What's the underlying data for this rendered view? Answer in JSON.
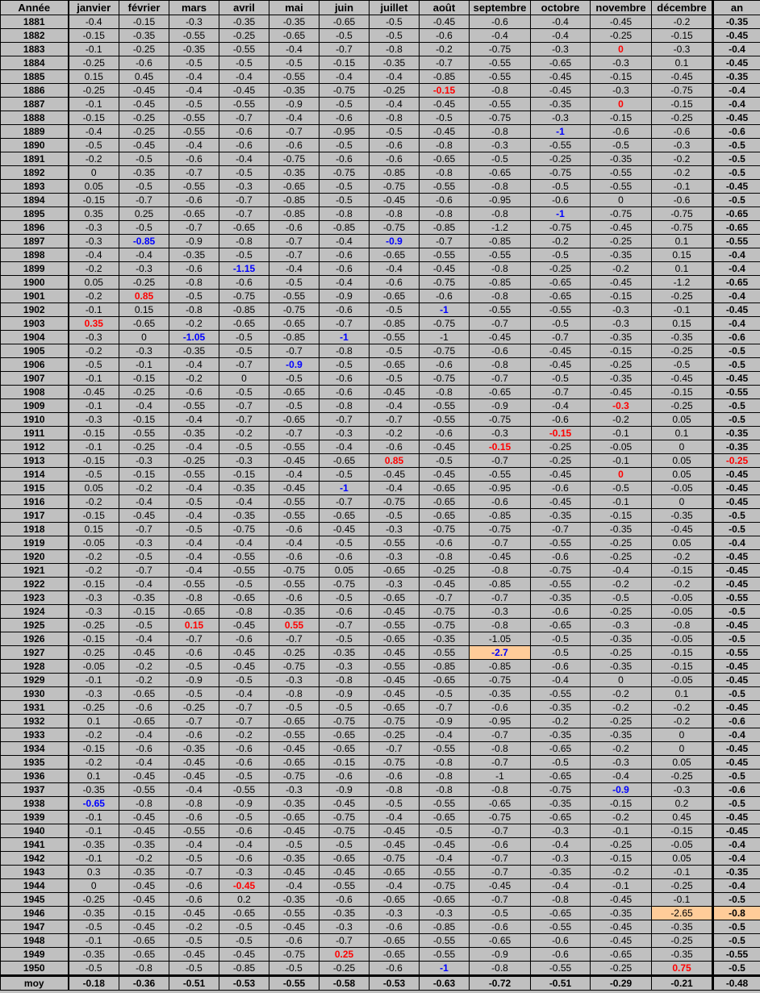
{
  "headers": [
    "Année",
    "janvier",
    "février",
    "mars",
    "avril",
    "mai",
    "juin",
    "juillet",
    "août",
    "septembre",
    "octobre",
    "novembre",
    "décembre",
    "an"
  ],
  "rows": [
    [
      "1881",
      "-0.4",
      "-0.15",
      "-0.3",
      "-0.35",
      "-0.35",
      "-0.65",
      "-0.5",
      "-0.45",
      "-0.6",
      "-0.4",
      "-0.45",
      "-0.2",
      "-0.35"
    ],
    [
      "1882",
      "-0.15",
      "-0.35",
      "-0.55",
      "-0.25",
      "-0.65",
      "-0.5",
      "-0.5",
      "-0.6",
      "-0.4",
      "-0.4",
      "-0.25",
      "-0.15",
      "-0.45"
    ],
    [
      "1883",
      "-0.1",
      "-0.25",
      "-0.35",
      "-0.55",
      "-0.4",
      "-0.7",
      "-0.8",
      "-0.2",
      "-0.75",
      "-0.3",
      "0",
      "-0.3",
      "-0.4"
    ],
    [
      "1884",
      "-0.25",
      "-0.6",
      "-0.5",
      "-0.5",
      "-0.5",
      "-0.15",
      "-0.35",
      "-0.7",
      "-0.55",
      "-0.65",
      "-0.3",
      "0.1",
      "-0.45"
    ],
    [
      "1885",
      "0.15",
      "0.45",
      "-0.4",
      "-0.4",
      "-0.55",
      "-0.4",
      "-0.4",
      "-0.85",
      "-0.55",
      "-0.45",
      "-0.15",
      "-0.45",
      "-0.35"
    ],
    [
      "1886",
      "-0.25",
      "-0.45",
      "-0.4",
      "-0.45",
      "-0.35",
      "-0.75",
      "-0.25",
      "-0.15",
      "-0.8",
      "-0.45",
      "-0.3",
      "-0.75",
      "-0.4"
    ],
    [
      "1887",
      "-0.1",
      "-0.45",
      "-0.5",
      "-0.55",
      "-0.9",
      "-0.5",
      "-0.4",
      "-0.45",
      "-0.55",
      "-0.35",
      "0",
      "-0.15",
      "-0.4"
    ],
    [
      "1888",
      "-0.15",
      "-0.25",
      "-0.55",
      "-0.7",
      "-0.4",
      "-0.6",
      "-0.8",
      "-0.5",
      "-0.75",
      "-0.3",
      "-0.15",
      "-0.25",
      "-0.45"
    ],
    [
      "1889",
      "-0.4",
      "-0.25",
      "-0.55",
      "-0.6",
      "-0.7",
      "-0.95",
      "-0.5",
      "-0.45",
      "-0.8",
      "-1",
      "-0.6",
      "-0.6",
      "-0.6"
    ],
    [
      "1890",
      "-0.5",
      "-0.45",
      "-0.4",
      "-0.6",
      "-0.6",
      "-0.5",
      "-0.6",
      "-0.8",
      "-0.3",
      "-0.55",
      "-0.5",
      "-0.3",
      "-0.5"
    ],
    [
      "1891",
      "-0.2",
      "-0.5",
      "-0.6",
      "-0.4",
      "-0.75",
      "-0.6",
      "-0.6",
      "-0.65",
      "-0.5",
      "-0.25",
      "-0.35",
      "-0.2",
      "-0.5"
    ],
    [
      "1892",
      "0",
      "-0.35",
      "-0.7",
      "-0.5",
      "-0.35",
      "-0.75",
      "-0.85",
      "-0.8",
      "-0.65",
      "-0.75",
      "-0.55",
      "-0.2",
      "-0.5"
    ],
    [
      "1893",
      "0.05",
      "-0.5",
      "-0.55",
      "-0.3",
      "-0.65",
      "-0.5",
      "-0.75",
      "-0.55",
      "-0.8",
      "-0.5",
      "-0.55",
      "-0.1",
      "-0.45"
    ],
    [
      "1894",
      "-0.15",
      "-0.7",
      "-0.6",
      "-0.7",
      "-0.85",
      "-0.5",
      "-0.45",
      "-0.6",
      "-0.95",
      "-0.6",
      "0",
      "-0.6",
      "-0.5"
    ],
    [
      "1895",
      "0.35",
      "0.25",
      "-0.65",
      "-0.7",
      "-0.85",
      "-0.8",
      "-0.8",
      "-0.8",
      "-0.8",
      "-1",
      "-0.75",
      "-0.75",
      "-0.65"
    ],
    [
      "1896",
      "-0.3",
      "-0.5",
      "-0.7",
      "-0.65",
      "-0.6",
      "-0.85",
      "-0.75",
      "-0.85",
      "-1.2",
      "-0.75",
      "-0.45",
      "-0.75",
      "-0.65"
    ],
    [
      "1897",
      "-0.3",
      "-0.85",
      "-0.9",
      "-0.8",
      "-0.7",
      "-0.4",
      "-0.9",
      "-0.7",
      "-0.85",
      "-0.2",
      "-0.25",
      "0.1",
      "-0.55"
    ],
    [
      "1898",
      "-0.4",
      "-0.4",
      "-0.35",
      "-0.5",
      "-0.7",
      "-0.6",
      "-0.65",
      "-0.55",
      "-0.55",
      "-0.5",
      "-0.35",
      "0.15",
      "-0.4"
    ],
    [
      "1899",
      "-0.2",
      "-0.3",
      "-0.6",
      "-1.15",
      "-0.4",
      "-0.6",
      "-0.4",
      "-0.45",
      "-0.8",
      "-0.25",
      "-0.2",
      "0.1",
      "-0.4"
    ],
    [
      "1900",
      "0.05",
      "-0.25",
      "-0.8",
      "-0.6",
      "-0.5",
      "-0.4",
      "-0.6",
      "-0.75",
      "-0.85",
      "-0.65",
      "-0.45",
      "-1.2",
      "-0.65"
    ],
    [
      "1901",
      "-0.2",
      "0.85",
      "-0.5",
      "-0.75",
      "-0.55",
      "-0.9",
      "-0.65",
      "-0.6",
      "-0.8",
      "-0.65",
      "-0.15",
      "-0.25",
      "-0.4"
    ],
    [
      "1902",
      "-0.1",
      "0.15",
      "-0.8",
      "-0.85",
      "-0.75",
      "-0.6",
      "-0.5",
      "-1",
      "-0.55",
      "-0.55",
      "-0.3",
      "-0.1",
      "-0.45"
    ],
    [
      "1903",
      "0.35",
      "-0.65",
      "-0.2",
      "-0.65",
      "-0.65",
      "-0.7",
      "-0.85",
      "-0.75",
      "-0.7",
      "-0.5",
      "-0.3",
      "0.15",
      "-0.4"
    ],
    [
      "1904",
      "-0.3",
      "0",
      "-1.05",
      "-0.5",
      "-0.85",
      "-1",
      "-0.55",
      "-1",
      "-0.45",
      "-0.7",
      "-0.35",
      "-0.35",
      "-0.6"
    ],
    [
      "1905",
      "-0.2",
      "-0.3",
      "-0.35",
      "-0.5",
      "-0.7",
      "-0.8",
      "-0.5",
      "-0.75",
      "-0.6",
      "-0.45",
      "-0.15",
      "-0.25",
      "-0.5"
    ],
    [
      "1906",
      "-0.5",
      "-0.1",
      "-0.4",
      "-0.7",
      "-0.9",
      "-0.5",
      "-0.65",
      "-0.6",
      "-0.8",
      "-0.45",
      "-0.25",
      "-0.5",
      "-0.5"
    ],
    [
      "1907",
      "-0.1",
      "-0.15",
      "-0.2",
      "0",
      "-0.5",
      "-0.6",
      "-0.5",
      "-0.75",
      "-0.7",
      "-0.5",
      "-0.35",
      "-0.45",
      "-0.45"
    ],
    [
      "1908",
      "-0.45",
      "-0.25",
      "-0.6",
      "-0.5",
      "-0.65",
      "-0.6",
      "-0.45",
      "-0.8",
      "-0.65",
      "-0.7",
      "-0.45",
      "-0.15",
      "-0.55"
    ],
    [
      "1909",
      "-0.1",
      "-0.4",
      "-0.55",
      "-0.7",
      "-0.5",
      "-0.8",
      "-0.4",
      "-0.55",
      "-0.9",
      "-0.4",
      "-0.3",
      "-0.25",
      "-0.5"
    ],
    [
      "1910",
      "-0.3",
      "-0.15",
      "-0.4",
      "-0.7",
      "-0.65",
      "-0.7",
      "-0.7",
      "-0.55",
      "-0.75",
      "-0.6",
      "-0.2",
      "0.05",
      "-0.5"
    ],
    [
      "1911",
      "-0.15",
      "-0.55",
      "-0.35",
      "-0.2",
      "-0.7",
      "-0.3",
      "-0.2",
      "-0.6",
      "-0.3",
      "-0.15",
      "-0.1",
      "0.1",
      "-0.35"
    ],
    [
      "1912",
      "-0.1",
      "-0.25",
      "-0.4",
      "-0.5",
      "-0.55",
      "-0.4",
      "-0.6",
      "-0.45",
      "-0.15",
      "-0.25",
      "-0.05",
      "0",
      "-0.35"
    ],
    [
      "1913",
      "-0.15",
      "-0.3",
      "-0.25",
      "-0.3",
      "-0.45",
      "-0.65",
      "0.85",
      "-0.5",
      "-0.7",
      "-0.25",
      "-0.1",
      "0.05",
      "-0.25"
    ],
    [
      "1914",
      "-0.5",
      "-0.15",
      "-0.55",
      "-0.15",
      "-0.4",
      "-0.5",
      "-0.45",
      "-0.45",
      "-0.55",
      "-0.45",
      "0",
      "0.05",
      "-0.45"
    ],
    [
      "1915",
      "0.05",
      "-0.2",
      "-0.4",
      "-0.35",
      "-0.45",
      "-1",
      "-0.4",
      "-0.65",
      "-0.95",
      "-0.6",
      "-0.5",
      "-0.05",
      "-0.45"
    ],
    [
      "1916",
      "-0.2",
      "-0.4",
      "-0.5",
      "-0.4",
      "-0.55",
      "-0.7",
      "-0.75",
      "-0.65",
      "-0.6",
      "-0.45",
      "-0.1",
      "0",
      "-0.45"
    ],
    [
      "1917",
      "-0.15",
      "-0.45",
      "-0.4",
      "-0.35",
      "-0.55",
      "-0.65",
      "-0.5",
      "-0.65",
      "-0.85",
      "-0.35",
      "-0.15",
      "-0.35",
      "-0.5"
    ],
    [
      "1918",
      "0.15",
      "-0.7",
      "-0.5",
      "-0.75",
      "-0.6",
      "-0.45",
      "-0.3",
      "-0.75",
      "-0.75",
      "-0.7",
      "-0.35",
      "-0.45",
      "-0.5"
    ],
    [
      "1919",
      "-0.05",
      "-0.3",
      "-0.4",
      "-0.4",
      "-0.4",
      "-0.5",
      "-0.55",
      "-0.6",
      "-0.7",
      "-0.55",
      "-0.25",
      "0.05",
      "-0.4"
    ],
    [
      "1920",
      "-0.2",
      "-0.5",
      "-0.4",
      "-0.55",
      "-0.6",
      "-0.6",
      "-0.3",
      "-0.8",
      "-0.45",
      "-0.6",
      "-0.25",
      "-0.2",
      "-0.45"
    ],
    [
      "1921",
      "-0.2",
      "-0.7",
      "-0.4",
      "-0.55",
      "-0.75",
      "0.05",
      "-0.65",
      "-0.25",
      "-0.8",
      "-0.75",
      "-0.4",
      "-0.15",
      "-0.45"
    ],
    [
      "1922",
      "-0.15",
      "-0.4",
      "-0.55",
      "-0.5",
      "-0.55",
      "-0.75",
      "-0.3",
      "-0.45",
      "-0.85",
      "-0.55",
      "-0.2",
      "-0.2",
      "-0.45"
    ],
    [
      "1923",
      "-0.3",
      "-0.35",
      "-0.8",
      "-0.65",
      "-0.6",
      "-0.5",
      "-0.65",
      "-0.7",
      "-0.7",
      "-0.35",
      "-0.5",
      "-0.05",
      "-0.55"
    ],
    [
      "1924",
      "-0.3",
      "-0.15",
      "-0.65",
      "-0.8",
      "-0.35",
      "-0.6",
      "-0.45",
      "-0.75",
      "-0.3",
      "-0.6",
      "-0.25",
      "-0.05",
      "-0.5"
    ],
    [
      "1925",
      "-0.25",
      "-0.5",
      "0.15",
      "-0.45",
      "0.55",
      "-0.7",
      "-0.55",
      "-0.75",
      "-0.8",
      "-0.65",
      "-0.3",
      "-0.8",
      "-0.45"
    ],
    [
      "1926",
      "-0.15",
      "-0.4",
      "-0.7",
      "-0.6",
      "-0.7",
      "-0.5",
      "-0.65",
      "-0.35",
      "-1.05",
      "-0.5",
      "-0.35",
      "-0.05",
      "-0.5"
    ],
    [
      "1927",
      "-0.25",
      "-0.45",
      "-0.6",
      "-0.45",
      "-0.25",
      "-0.35",
      "-0.45",
      "-0.55",
      "-2.7",
      "-0.5",
      "-0.25",
      "-0.15",
      "-0.55"
    ],
    [
      "1928",
      "-0.05",
      "-0.2",
      "-0.5",
      "-0.45",
      "-0.75",
      "-0.3",
      "-0.55",
      "-0.85",
      "-0.85",
      "-0.6",
      "-0.35",
      "-0.15",
      "-0.45"
    ],
    [
      "1929",
      "-0.1",
      "-0.2",
      "-0.9",
      "-0.5",
      "-0.3",
      "-0.8",
      "-0.45",
      "-0.65",
      "-0.75",
      "-0.4",
      "0",
      "-0.05",
      "-0.45"
    ],
    [
      "1930",
      "-0.3",
      "-0.65",
      "-0.5",
      "-0.4",
      "-0.8",
      "-0.9",
      "-0.45",
      "-0.5",
      "-0.35",
      "-0.55",
      "-0.2",
      "0.1",
      "-0.5"
    ],
    [
      "1931",
      "-0.25",
      "-0.6",
      "-0.25",
      "-0.7",
      "-0.5",
      "-0.5",
      "-0.65",
      "-0.7",
      "-0.6",
      "-0.35",
      "-0.2",
      "-0.2",
      "-0.45"
    ],
    [
      "1932",
      "0.1",
      "-0.65",
      "-0.7",
      "-0.7",
      "-0.65",
      "-0.75",
      "-0.75",
      "-0.9",
      "-0.95",
      "-0.2",
      "-0.25",
      "-0.2",
      "-0.6"
    ],
    [
      "1933",
      "-0.2",
      "-0.4",
      "-0.6",
      "-0.2",
      "-0.55",
      "-0.65",
      "-0.25",
      "-0.4",
      "-0.7",
      "-0.35",
      "-0.35",
      "0",
      "-0.4"
    ],
    [
      "1934",
      "-0.15",
      "-0.6",
      "-0.35",
      "-0.6",
      "-0.45",
      "-0.65",
      "-0.7",
      "-0.55",
      "-0.8",
      "-0.65",
      "-0.2",
      "0",
      "-0.45"
    ],
    [
      "1935",
      "-0.2",
      "-0.4",
      "-0.45",
      "-0.6",
      "-0.65",
      "-0.15",
      "-0.75",
      "-0.8",
      "-0.7",
      "-0.5",
      "-0.3",
      "0.05",
      "-0.45"
    ],
    [
      "1936",
      "0.1",
      "-0.45",
      "-0.45",
      "-0.5",
      "-0.75",
      "-0.6",
      "-0.6",
      "-0.8",
      "-1",
      "-0.65",
      "-0.4",
      "-0.25",
      "-0.5"
    ],
    [
      "1937",
      "-0.35",
      "-0.55",
      "-0.4",
      "-0.55",
      "-0.3",
      "-0.9",
      "-0.8",
      "-0.8",
      "-0.8",
      "-0.75",
      "-0.9",
      "-0.3",
      "-0.6"
    ],
    [
      "1938",
      "-0.65",
      "-0.8",
      "-0.8",
      "-0.9",
      "-0.35",
      "-0.45",
      "-0.5",
      "-0.55",
      "-0.65",
      "-0.35",
      "-0.15",
      "0.2",
      "-0.5"
    ],
    [
      "1939",
      "-0.1",
      "-0.45",
      "-0.6",
      "-0.5",
      "-0.65",
      "-0.75",
      "-0.4",
      "-0.65",
      "-0.75",
      "-0.65",
      "-0.2",
      "0.45",
      "-0.45"
    ],
    [
      "1940",
      "-0.1",
      "-0.45",
      "-0.55",
      "-0.6",
      "-0.45",
      "-0.75",
      "-0.45",
      "-0.5",
      "-0.7",
      "-0.3",
      "-0.1",
      "-0.15",
      "-0.45"
    ],
    [
      "1941",
      "-0.35",
      "-0.35",
      "-0.4",
      "-0.4",
      "-0.5",
      "-0.5",
      "-0.45",
      "-0.45",
      "-0.6",
      "-0.4",
      "-0.25",
      "-0.05",
      "-0.4"
    ],
    [
      "1942",
      "-0.1",
      "-0.2",
      "-0.5",
      "-0.6",
      "-0.35",
      "-0.65",
      "-0.75",
      "-0.4",
      "-0.7",
      "-0.3",
      "-0.15",
      "0.05",
      "-0.4"
    ],
    [
      "1943",
      "0.3",
      "-0.35",
      "-0.7",
      "-0.3",
      "-0.45",
      "-0.45",
      "-0.65",
      "-0.55",
      "-0.7",
      "-0.35",
      "-0.2",
      "-0.1",
      "-0.35"
    ],
    [
      "1944",
      "0",
      "-0.45",
      "-0.6",
      "-0.45",
      "-0.4",
      "-0.55",
      "-0.4",
      "-0.75",
      "-0.45",
      "-0.4",
      "-0.1",
      "-0.25",
      "-0.4"
    ],
    [
      "1945",
      "-0.25",
      "-0.45",
      "-0.6",
      "0.2",
      "-0.35",
      "-0.6",
      "-0.65",
      "-0.65",
      "-0.7",
      "-0.8",
      "-0.45",
      "-0.1",
      "-0.5"
    ],
    [
      "1946",
      "-0.35",
      "-0.15",
      "-0.45",
      "-0.65",
      "-0.55",
      "-0.35",
      "-0.3",
      "-0.3",
      "-0.5",
      "-0.65",
      "-0.35",
      "-2.65",
      "-0.8"
    ],
    [
      "1947",
      "-0.5",
      "-0.45",
      "-0.2",
      "-0.5",
      "-0.45",
      "-0.3",
      "-0.6",
      "-0.85",
      "-0.6",
      "-0.55",
      "-0.45",
      "-0.35",
      "-0.5"
    ],
    [
      "1948",
      "-0.1",
      "-0.65",
      "-0.5",
      "-0.5",
      "-0.6",
      "-0.7",
      "-0.65",
      "-0.55",
      "-0.65",
      "-0.6",
      "-0.45",
      "-0.25",
      "-0.5"
    ],
    [
      "1949",
      "-0.35",
      "-0.65",
      "-0.45",
      "-0.45",
      "-0.75",
      "0.25",
      "-0.65",
      "-0.55",
      "-0.9",
      "-0.6",
      "-0.65",
      "-0.35",
      "-0.55"
    ],
    [
      "1950",
      "-0.5",
      "-0.8",
      "-0.5",
      "-0.85",
      "-0.5",
      "-0.25",
      "-0.6",
      "-1",
      "-0.8",
      "-0.55",
      "-0.25",
      "0.75",
      "-0.5"
    ]
  ],
  "footer": [
    "moy",
    "-0.18",
    "-0.36",
    "-0.51",
    "-0.53",
    "-0.55",
    "-0.58",
    "-0.53",
    "-0.63",
    "-0.72",
    "-0.51",
    "-0.29",
    "-0.21",
    "-0.48"
  ],
  "highlights": {
    "red": [
      [
        2,
        11
      ],
      [
        5,
        8
      ],
      [
        6,
        11
      ],
      [
        20,
        2
      ],
      [
        22,
        1
      ],
      [
        30,
        10
      ],
      [
        31,
        9
      ],
      [
        32,
        7
      ],
      [
        32,
        13
      ],
      [
        33,
        11
      ],
      [
        44,
        3
      ],
      [
        44,
        5
      ],
      [
        28,
        11
      ],
      [
        63,
        4
      ],
      [
        68,
        6
      ],
      [
        69,
        12
      ]
    ],
    "blue": [
      [
        8,
        10
      ],
      [
        14,
        10
      ],
      [
        16,
        2
      ],
      [
        16,
        7
      ],
      [
        18,
        4
      ],
      [
        21,
        8
      ],
      [
        23,
        3
      ],
      [
        23,
        6
      ],
      [
        25,
        5
      ],
      [
        34,
        6
      ],
      [
        46,
        9
      ],
      [
        56,
        11
      ],
      [
        57,
        1
      ],
      [
        69,
        8
      ]
    ],
    "boxed": [
      [
        46,
        9
      ],
      [
        65,
        12
      ],
      [
        65,
        13
      ]
    ]
  },
  "colors": {
    "background": "#c0c0c0",
    "red": "#ff0000",
    "blue": "#0000ff",
    "box": "#ffcc99"
  }
}
